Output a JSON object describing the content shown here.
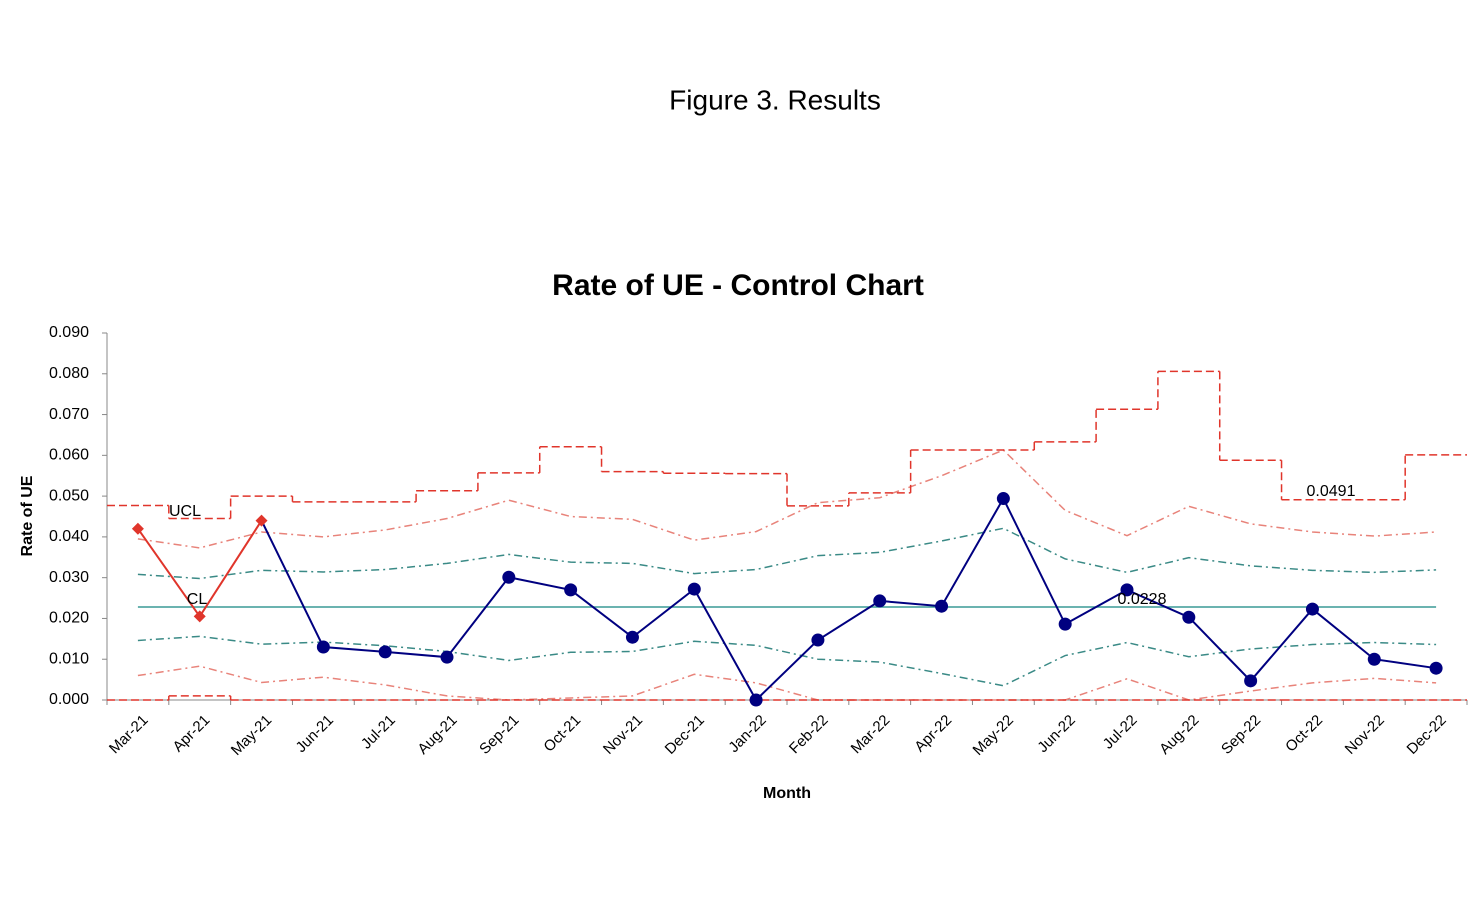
{
  "page_title": "Figure 3. Results",
  "chart_data": {
    "type": "line",
    "title": "Rate of UE - Control Chart",
    "x_label": "Month",
    "y_label": "Rate of UE",
    "categories": [
      "Mar-21",
      "Apr-21",
      "May-21",
      "Jun-21",
      "Jul-21",
      "Aug-21",
      "Sep-21",
      "Oct-21",
      "Nov-21",
      "Dec-21",
      "Jan-22",
      "Feb-22",
      "Mar-22",
      "Apr-22",
      "May-22",
      "Jun-22",
      "Jul-22",
      "Aug-22",
      "Sep-22",
      "Oct-22",
      "Nov-22",
      "Dec-22"
    ],
    "ylim": [
      0,
      0.09
    ],
    "yticks": [
      {
        "value": 0,
        "label": "0.000"
      },
      {
        "value": 0.01,
        "label": "0.010"
      },
      {
        "value": 0.02,
        "label": "0.020"
      },
      {
        "value": 0.03,
        "label": "0.030"
      },
      {
        "value": 0.04,
        "label": "0.040"
      },
      {
        "value": 0.05,
        "label": "0.050"
      },
      {
        "value": 0.06,
        "label": "0.060"
      },
      {
        "value": 0.07,
        "label": "0.070"
      },
      {
        "value": 0.08,
        "label": "0.080"
      },
      {
        "value": 0.09,
        "label": "0.090"
      }
    ],
    "series": [
      {
        "color": "#e8837a",
        "style": "dashdot",
        "values": [
          0.0395,
          0.0373,
          0.0412,
          0.04,
          0.0417,
          0.0445,
          0.049,
          0.045,
          0.0443,
          0.0392,
          0.0413,
          0.0484,
          0.0496,
          0.055,
          0.0613,
          0.0465,
          0.0403,
          0.0475,
          0.0432,
          0.0412,
          0.0402,
          0.0412
        ]
      },
      {
        "color": "#e8837a",
        "style": "dashdot",
        "values": [
          0.006,
          0.0083,
          0.0043,
          0.0056,
          0.0037,
          0.001,
          0,
          0.0005,
          0.001,
          0.0063,
          0.0042,
          0,
          0,
          0,
          0,
          0,
          0.0052,
          0,
          0.0022,
          0.0042,
          0.0053,
          0.0042
        ]
      },
      {
        "color": "#3a8a86",
        "style": "dashdot",
        "values": [
          0.0308,
          0.0298,
          0.0318,
          0.0314,
          0.032,
          0.0335,
          0.0357,
          0.0338,
          0.0335,
          0.031,
          0.032,
          0.0354,
          0.0362,
          0.039,
          0.0421,
          0.0346,
          0.0313,
          0.0349,
          0.0329,
          0.0318,
          0.0313,
          0.0319
        ]
      },
      {
        "color": "#3a8a86",
        "style": "dashdot",
        "values": [
          0.0146,
          0.0156,
          0.0137,
          0.0142,
          0.0133,
          0.0119,
          0.0097,
          0.0117,
          0.0119,
          0.0144,
          0.0134,
          0.01,
          0.0093,
          0.0065,
          0.0035,
          0.0109,
          0.0141,
          0.0106,
          0.0125,
          0.0136,
          0.0141,
          0.0136
        ]
      },
      {
        "color": "#3a9a96",
        "style": "solid",
        "values": [
          0.0228,
          0.0228,
          0.0228,
          0.0228,
          0.0228,
          0.0228,
          0.0228,
          0.0228,
          0.0228,
          0.0228,
          0.0228,
          0.0228,
          0.0228,
          0.0228,
          0.0228,
          0.0228,
          0.0228,
          0.0228,
          0.0228,
          0.0228,
          0.0228,
          0.0228
        ]
      },
      {
        "color": "#e0352b",
        "style": "step",
        "values": [
          0.0477,
          0.0445,
          0.05,
          0.0486,
          0.0486,
          0.0513,
          0.0557,
          0.0621,
          0.056,
          0.0556,
          0.0555,
          0.0476,
          0.0508,
          0.0613,
          0.0613,
          0.0633,
          0.0713,
          0.0806,
          0.0588,
          0.0491,
          0.0491,
          0.0601
        ]
      },
      {
        "color": "#e0352b",
        "style": "step",
        "values": [
          0,
          0.001,
          0,
          0,
          0,
          0,
          0,
          0,
          0,
          0,
          0,
          0,
          0,
          0,
          0,
          0,
          0,
          0,
          0,
          0,
          0,
          0
        ]
      },
      {
        "color": "#000080",
        "style": "solid",
        "marker": "circle",
        "values": [
          null,
          null,
          0.044,
          0.013,
          0.0118,
          0.0105,
          0.0301,
          0.027,
          0.0154,
          0.0272,
          0,
          0.0147,
          0.0243,
          0.023,
          0.0494,
          0.0186,
          0.027,
          0.0203,
          0.0047,
          0.0223,
          0.01,
          0.0078
        ]
      },
      {
        "color": "#e0352b",
        "style": "solid",
        "marker": "diamond",
        "values": [
          0.042,
          0.0205,
          0.044,
          null,
          null,
          null,
          null,
          null,
          null,
          null,
          null,
          null,
          null,
          null,
          null,
          null,
          null,
          null,
          null,
          null,
          null,
          null
        ]
      }
    ],
    "annotations": [
      "UCL",
      "CL",
      "0.0228",
      "0.0491"
    ]
  }
}
